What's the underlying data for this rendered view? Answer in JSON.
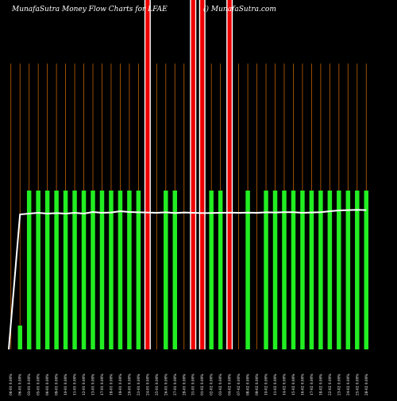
{
  "chart_data": {
    "type": "bar",
    "title": "MunafaSutra  Money Flow  Charts for LFAE",
    "watermark": "() MunafaSutra.com",
    "background_color": "#000000",
    "grid_color": "#c06000",
    "line_color": "#ffffff",
    "categories": [
      "06-01 0.00%",
      "06-01 0.00%",
      "03-01 0.00%",
      "05-01 0.00%",
      "06-01 0.00%",
      "09-01 0.00%",
      "10-01 0.00%",
      "11-01 0.00%",
      "12-01 0.00%",
      "13-01 0.00%",
      "17-01 0.00%",
      "18-01 0.00%",
      "19-01 0.00%",
      "20-01 0.00%",
      "21-01 0.00%",
      "24-01 0.00%",
      "25-01 0.00%",
      "26-01 0.00%",
      "27-01 0.00%",
      "28-01 0.00%",
      "31-01 0.00%",
      "01-02 0.00%",
      "02-02 0.00%",
      "03-02 0.00%",
      "04-02 0.00%",
      "07-02 0.00%",
      "08-02 0.00%",
      "09-02 0.00%",
      "10-02 0.00%",
      "11-02 0.00%",
      "14-02 0.00%",
      "15-02 0.00%",
      "16-02 0.00%",
      "17-02 0.00%",
      "18-02 0.00%",
      "22-02 0.00%",
      "23-02 0.00%",
      "24-02 0.00%",
      "25-02 0.00%",
      "28-02 0.00%"
    ],
    "series": [
      {
        "color_key": "bar_colors",
        "values": [
          0,
          15,
          100,
          100,
          100,
          100,
          100,
          100,
          100,
          100,
          100,
          100,
          100,
          100,
          100,
          100,
          100,
          100,
          100,
          100,
          100,
          100,
          100,
          100,
          100,
          100,
          100,
          100,
          100,
          100,
          100,
          100,
          100,
          100,
          100,
          100,
          100,
          100,
          100,
          100
        ]
      }
    ],
    "bar_colors": [
      "none",
      "green",
      "green",
      "green",
      "green",
      "green",
      "green",
      "green",
      "green",
      "green",
      "green",
      "green",
      "green",
      "green",
      "green",
      "red",
      "none",
      "green",
      "green",
      "none",
      "red",
      "red",
      "green",
      "green",
      "red",
      "none",
      "green",
      "none",
      "green",
      "green",
      "green",
      "green",
      "green",
      "green",
      "green",
      "green",
      "green",
      "green",
      "green",
      "green"
    ],
    "line_values": [
      0,
      85,
      85.5,
      86,
      85.5,
      85.8,
      85.5,
      86,
      85.5,
      86.5,
      86,
      86.2,
      87,
      86.5,
      86.3,
      86.2,
      86,
      86.3,
      85.9,
      86.2,
      86,
      85.8,
      85.9,
      86,
      86.1,
      86,
      86.1,
      86,
      86.3,
      86.2,
      86.4,
      86.4,
      86,
      86.2,
      86.4,
      87,
      87.5,
      87.7,
      87.9,
      87.7
    ],
    "colors": {
      "green": "#22ee22",
      "red": "#ee0000",
      "red_border": "#ffffff"
    },
    "ylim": [
      0,
      120
    ],
    "grid": true,
    "legend": "none"
  }
}
